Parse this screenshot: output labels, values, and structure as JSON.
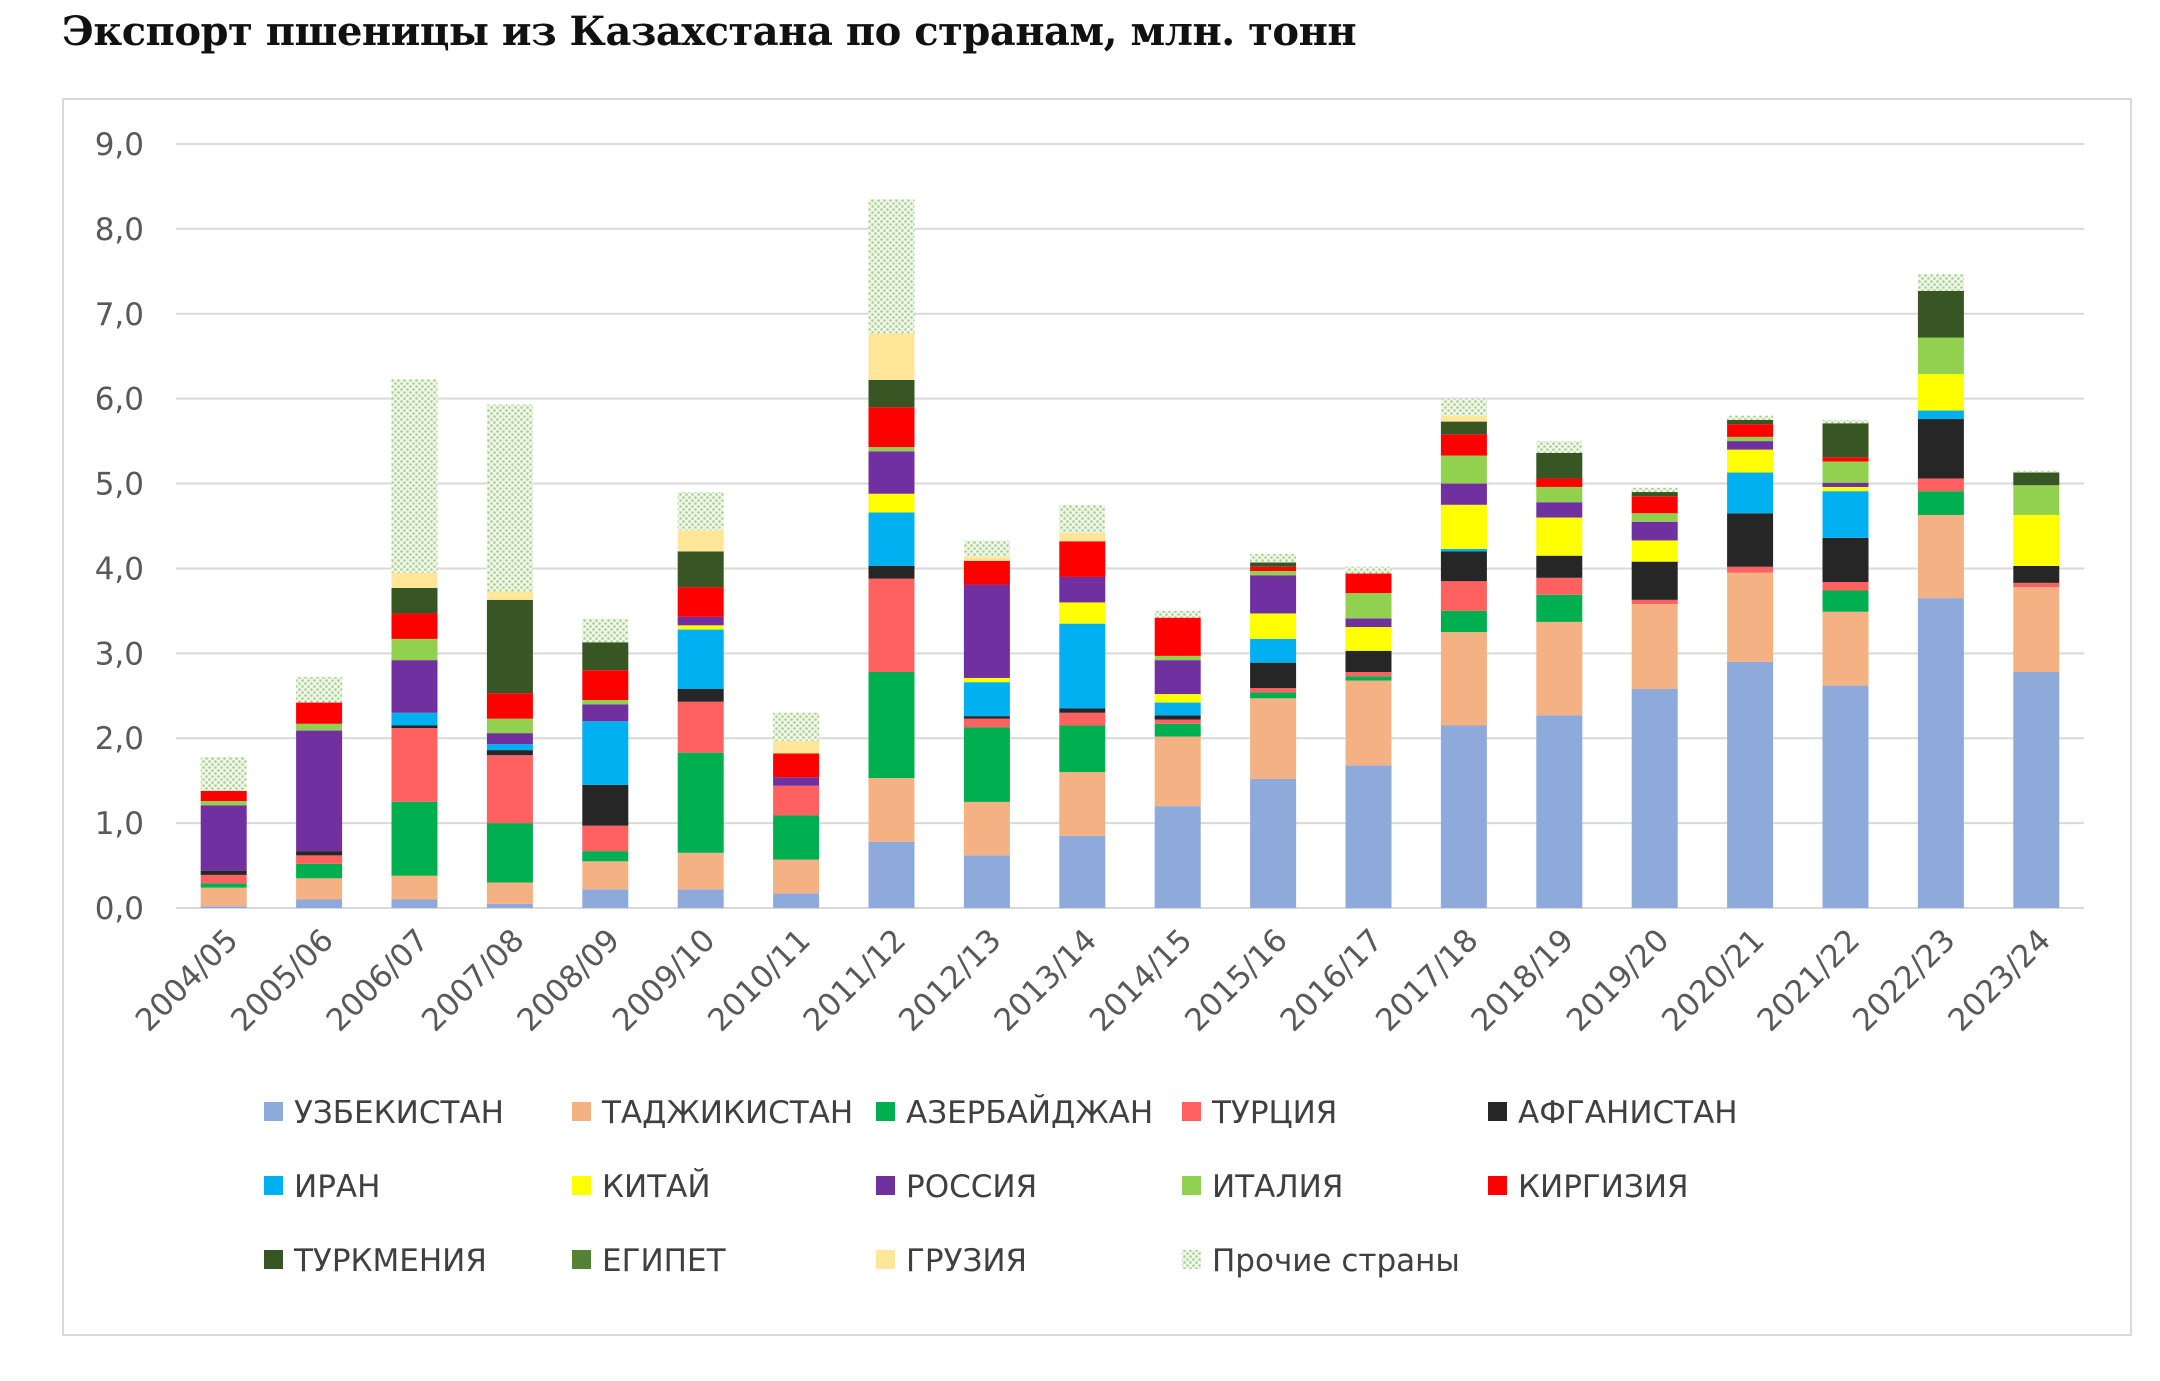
{
  "chart_data": {
    "type": "bar",
    "stacked": true,
    "title": "Экспорт пшеницы из Казахстана по странам, млн. тонн",
    "xlabel": "",
    "ylabel": "",
    "ylim": [
      0,
      9
    ],
    "yticks": [
      "0,0",
      "1,0",
      "2,0",
      "3,0",
      "4,0",
      "5,0",
      "6,0",
      "7,0",
      "8,0",
      "9,0"
    ],
    "grid": true,
    "legend_position": "bottom",
    "categories": [
      "2004/05",
      "2005/06",
      "2006/07",
      "2007/08",
      "2008/09",
      "2009/10",
      "2010/11",
      "2011/12",
      "2012/13",
      "2013/14",
      "2014/15",
      "2015/16",
      "2016/17",
      "2017/18",
      "2018/19",
      "2019/20",
      "2020/21",
      "2021/22",
      "2022/23",
      "2023/24"
    ],
    "series": [
      {
        "name": "УЗБЕКИСТАН",
        "color": "#8eaadb",
        "values": [
          0.02,
          0.1,
          0.1,
          0.05,
          0.22,
          0.22,
          0.17,
          0.78,
          0.62,
          0.85,
          1.2,
          1.52,
          1.68,
          2.15,
          2.27,
          2.58,
          2.9,
          2.62,
          3.65,
          2.78
        ]
      },
      {
        "name": "ТАДЖИКИСТАН",
        "color": "#f4b183",
        "values": [
          0.22,
          0.25,
          0.28,
          0.25,
          0.33,
          0.43,
          0.4,
          0.75,
          0.63,
          0.75,
          0.82,
          0.95,
          1.0,
          1.1,
          1.1,
          1.0,
          1.05,
          0.87,
          0.98,
          1.0
        ]
      },
      {
        "name": "АЗЕРБАЙДЖАН",
        "color": "#00b050",
        "values": [
          0.05,
          0.17,
          0.87,
          0.7,
          0.12,
          1.18,
          0.52,
          1.25,
          0.88,
          0.55,
          0.15,
          0.07,
          0.05,
          0.25,
          0.32,
          0.0,
          0.0,
          0.25,
          0.28,
          0.0
        ]
      },
      {
        "name": "ТУРЦИЯ",
        "color": "#ff6161",
        "values": [
          0.1,
          0.1,
          0.87,
          0.8,
          0.3,
          0.6,
          0.35,
          1.1,
          0.1,
          0.15,
          0.05,
          0.05,
          0.05,
          0.35,
          0.2,
          0.05,
          0.07,
          0.1,
          0.15,
          0.05
        ]
      },
      {
        "name": "АФГАНИСТАН",
        "color": "#262626",
        "values": [
          0.05,
          0.05,
          0.03,
          0.06,
          0.48,
          0.15,
          0.0,
          0.15,
          0.03,
          0.05,
          0.05,
          0.3,
          0.25,
          0.35,
          0.26,
          0.45,
          0.63,
          0.52,
          0.7,
          0.2
        ]
      },
      {
        "name": "ИРАН",
        "color": "#00b0f0",
        "values": [
          0.0,
          0.0,
          0.15,
          0.07,
          0.75,
          0.7,
          0.0,
          0.63,
          0.4,
          1.0,
          0.15,
          0.28,
          0.0,
          0.03,
          0.0,
          0.0,
          0.48,
          0.55,
          0.1,
          0.0
        ]
      },
      {
        "name": "КИТАЙ",
        "color": "#ffff00",
        "values": [
          0.0,
          0.0,
          0.0,
          0.0,
          0.0,
          0.05,
          0.0,
          0.22,
          0.05,
          0.25,
          0.1,
          0.3,
          0.28,
          0.52,
          0.45,
          0.25,
          0.27,
          0.05,
          0.43,
          0.6
        ]
      },
      {
        "name": "РОССИЯ",
        "color": "#7030a0",
        "values": [
          0.77,
          1.42,
          0.62,
          0.13,
          0.2,
          0.1,
          0.1,
          0.5,
          1.1,
          0.3,
          0.4,
          0.45,
          0.1,
          0.25,
          0.18,
          0.22,
          0.1,
          0.05,
          0.0,
          0.0
        ]
      },
      {
        "name": "ИТАЛИЯ",
        "color": "#92d050",
        "values": [
          0.05,
          0.08,
          0.25,
          0.17,
          0.05,
          0.0,
          0.0,
          0.05,
          0.0,
          0.0,
          0.05,
          0.05,
          0.3,
          0.33,
          0.18,
          0.1,
          0.05,
          0.25,
          0.43,
          0.35
        ]
      },
      {
        "name": "КИРГИЗИЯ",
        "color": "#ff0000",
        "values": [
          0.12,
          0.25,
          0.3,
          0.3,
          0.35,
          0.35,
          0.28,
          0.47,
          0.28,
          0.42,
          0.45,
          0.05,
          0.23,
          0.25,
          0.1,
          0.2,
          0.15,
          0.05,
          0.0,
          0.0
        ]
      },
      {
        "name": "ТУРКМЕНИЯ",
        "color": "#375623",
        "values": [
          0.0,
          0.0,
          0.3,
          1.1,
          0.33,
          0.42,
          0.0,
          0.32,
          0.0,
          0.0,
          0.0,
          0.05,
          0.0,
          0.15,
          0.3,
          0.05,
          0.05,
          0.4,
          0.55,
          0.15
        ]
      },
      {
        "name": "ЕГИПЕТ",
        "color": "#548235",
        "values": [
          0.0,
          0.0,
          0.0,
          0.0,
          0.0,
          0.0,
          0.0,
          0.0,
          0.0,
          0.0,
          0.0,
          0.0,
          0.0,
          0.0,
          0.0,
          0.0,
          0.0,
          0.0,
          0.0,
          0.0
        ]
      },
      {
        "name": "ГРУЗИЯ",
        "color": "#ffe699",
        "values": [
          0.0,
          0.0,
          0.18,
          0.1,
          0.0,
          0.25,
          0.15,
          0.55,
          0.05,
          0.1,
          0.0,
          0.0,
          0.0,
          0.07,
          0.0,
          0.0,
          0.0,
          0.0,
          0.0,
          0.0
        ]
      },
      {
        "name": "Прочие страны",
        "color": "#c6e0b4",
        "pattern": "dots",
        "values": [
          0.4,
          0.3,
          2.28,
          2.2,
          0.28,
          0.45,
          0.33,
          1.58,
          0.19,
          0.33,
          0.08,
          0.1,
          0.08,
          0.2,
          0.14,
          0.05,
          0.05,
          0.04,
          0.2,
          0.02
        ]
      }
    ]
  }
}
